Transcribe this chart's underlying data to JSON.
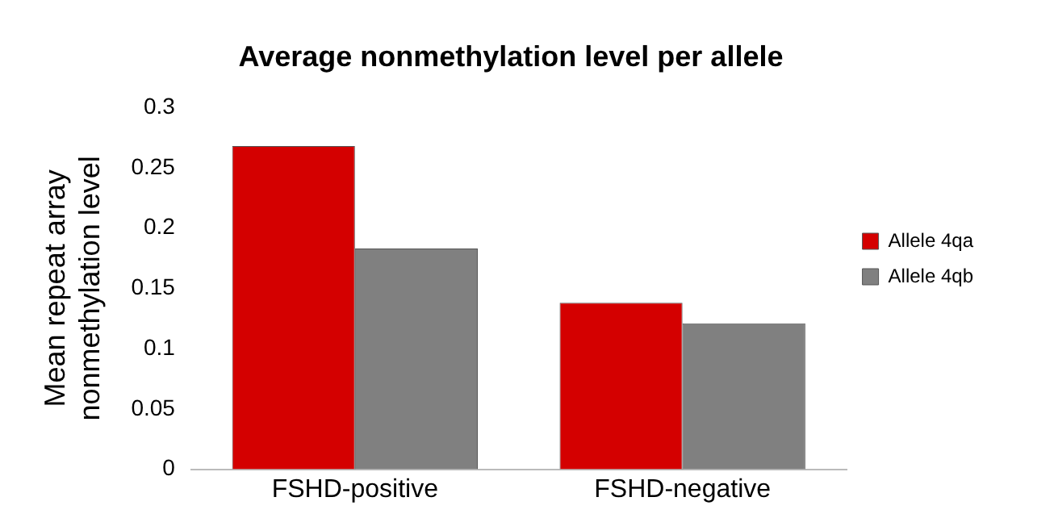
{
  "chart_data": {
    "type": "bar",
    "title": "Average nonmethylation level per allele",
    "ylabel": "Mean repeat array\nnonmethylation level",
    "categories": [
      "FSHD-positive",
      "FSHD-negative"
    ],
    "series": [
      {
        "name": "Allele 4qa",
        "color": "#d40000",
        "values": [
          0.268,
          0.138
        ]
      },
      {
        "name": "Allele 4qb",
        "color": "#808080",
        "values": [
          0.183,
          0.121
        ]
      }
    ],
    "ylim": [
      0,
      0.3
    ],
    "yticks": [
      0,
      0.05,
      0.1,
      0.15,
      0.2,
      0.25,
      0.3
    ],
    "grid": false,
    "legend": "right"
  }
}
